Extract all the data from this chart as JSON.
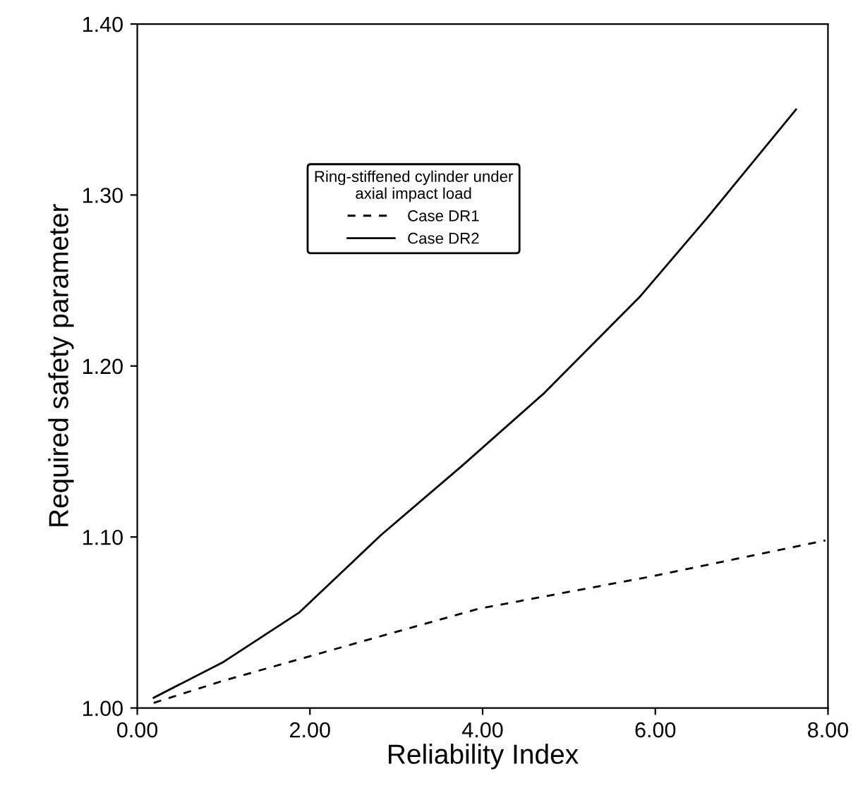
{
  "chart_data": {
    "type": "line",
    "xlabel": "Reliability Index",
    "ylabel": "Required safety parameter",
    "legend_title": "Ring-stiffened cylinder under\naxial impact load",
    "legend": "top center",
    "xlim": [
      0,
      8
    ],
    "ylim": [
      1.0,
      1.4
    ],
    "xticks": [
      {
        "value": 0,
        "label": "0.00"
      },
      {
        "value": 2,
        "label": "2.00"
      },
      {
        "value": 4,
        "label": "4.00"
      },
      {
        "value": 6,
        "label": "6.00"
      },
      {
        "value": 8,
        "label": "8.00"
      }
    ],
    "yticks": [
      {
        "value": 1.0,
        "label": "1.00"
      },
      {
        "value": 1.1,
        "label": "1.10"
      },
      {
        "value": 1.2,
        "label": "1.20"
      },
      {
        "value": 1.3,
        "label": "1.30"
      },
      {
        "value": 1.4,
        "label": "1.40"
      }
    ],
    "grid": false,
    "marker": "none",
    "series": [
      {
        "name": "Case DR1",
        "color": "#000000",
        "line_style": "dashed",
        "x": [
          0.19,
          1.0,
          2.82,
          3.95,
          5.96,
          7.97
        ],
        "values": [
          1.003,
          1.016,
          1.042,
          1.058,
          1.077,
          1.098
        ]
      },
      {
        "name": "Case DR2",
        "color": "#000000",
        "line_style": "solid",
        "x": [
          0.19,
          1.0,
          1.88,
          2.82,
          3.77,
          4.71,
          5.83,
          6.59,
          7.63
        ],
        "values": [
          1.006,
          1.027,
          1.056,
          1.101,
          1.142,
          1.184,
          1.241,
          1.286,
          1.35
        ]
      }
    ]
  }
}
